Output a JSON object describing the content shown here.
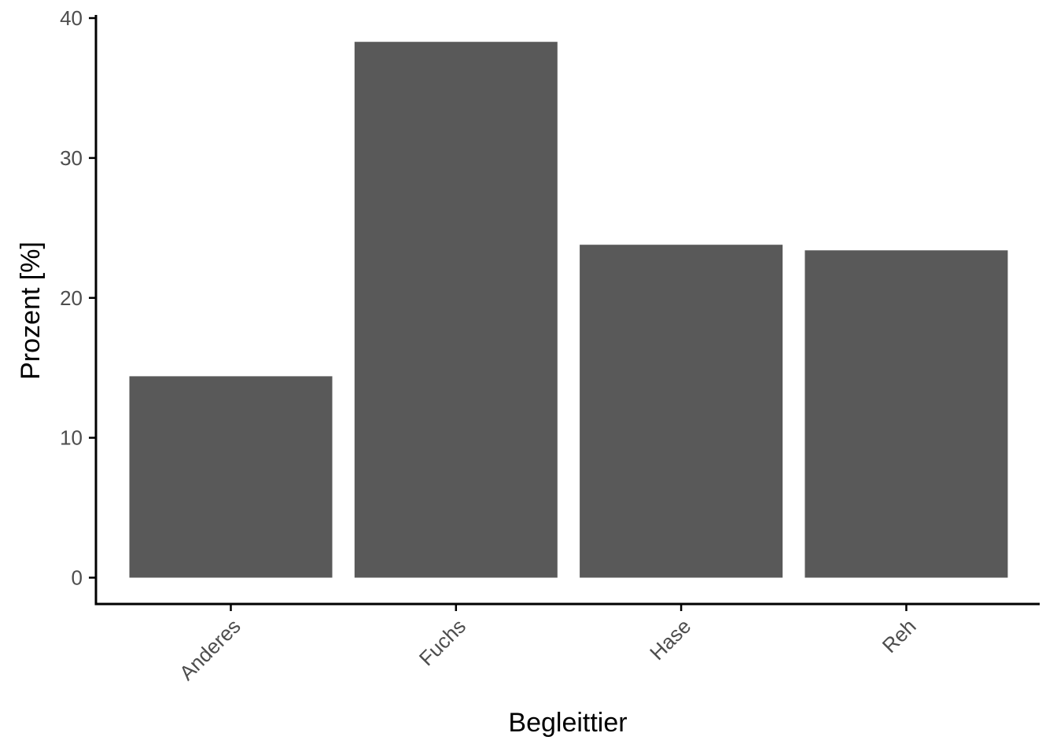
{
  "chart_data": {
    "type": "bar",
    "title": "",
    "xlabel": "Begleittier",
    "ylabel": "Prozent [%]",
    "categories": [
      "Anderes",
      "Fuchs",
      "Hase",
      "Reh"
    ],
    "values": [
      14.4,
      38.3,
      23.8,
      23.4
    ],
    "ylim": [
      0,
      40
    ],
    "yticks": [
      "0",
      "10",
      "20",
      "30",
      "40"
    ],
    "grid": false,
    "legend": "none",
    "colors": {
      "bar": "#595959",
      "axis": "#000000",
      "tick_label": "#4d4d4d"
    }
  }
}
